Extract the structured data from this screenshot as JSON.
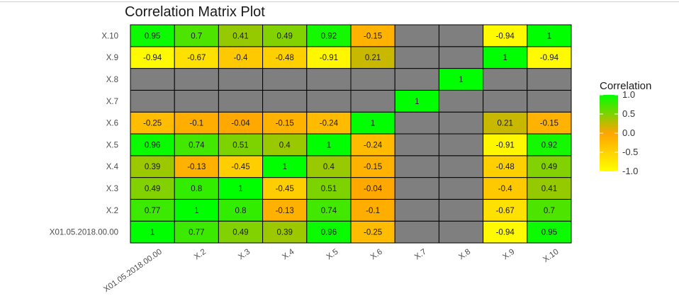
{
  "chart_data": {
    "type": "heatmap",
    "title": "Correlation Matrix Plot",
    "variables": [
      "X01.05.2018.00.00",
      "X.2",
      "X.3",
      "X.4",
      "X.5",
      "X.6",
      "X.7",
      "X.8",
      "X.9",
      "X.10"
    ],
    "matrix": [
      [
        1,
        0.77,
        0.49,
        0.39,
        0.96,
        -0.25,
        null,
        null,
        -0.94,
        0.95
      ],
      [
        0.77,
        1,
        0.8,
        -0.13,
        0.74,
        -0.1,
        null,
        null,
        -0.67,
        0.7
      ],
      [
        0.49,
        0.8,
        1,
        -0.45,
        0.51,
        -0.04,
        null,
        null,
        -0.4,
        0.41
      ],
      [
        0.39,
        -0.13,
        -0.45,
        1,
        0.4,
        -0.15,
        null,
        null,
        -0.48,
        0.49
      ],
      [
        0.96,
        0.74,
        0.51,
        0.4,
        1,
        -0.24,
        null,
        null,
        -0.91,
        0.92
      ],
      [
        -0.25,
        -0.1,
        -0.04,
        -0.15,
        -0.24,
        1,
        null,
        null,
        0.21,
        -0.15
      ],
      [
        null,
        null,
        null,
        null,
        null,
        null,
        1,
        null,
        null,
        null
      ],
      [
        null,
        null,
        null,
        null,
        null,
        null,
        null,
        1,
        null,
        null
      ],
      [
        -0.94,
        -0.67,
        -0.4,
        -0.48,
        -0.91,
        0.21,
        null,
        null,
        1,
        -0.94
      ],
      [
        0.95,
        0.7,
        0.41,
        0.49,
        0.92,
        -0.15,
        null,
        null,
        -0.94,
        1
      ]
    ],
    "legend": {
      "title": "Correlation",
      "placement": "right",
      "ticks": [
        "1.0",
        "0.5",
        "0.0",
        "-0.5",
        "-1.0"
      ],
      "range": [
        -1,
        1
      ]
    },
    "colors": {
      "low": "#ffff00",
      "mid": "#ffa500",
      "high": "#00ff00",
      "na": "#7f7f7f"
    }
  }
}
